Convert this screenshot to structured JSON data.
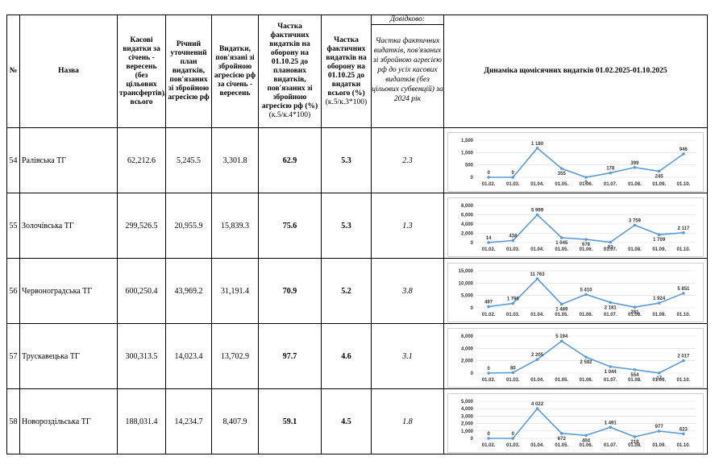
{
  "table": {
    "reference_note": "Довідково:",
    "headers": [
      {
        "text": "№"
      },
      {
        "text": "Назва"
      },
      {
        "text": "Касові видатки за січень - вересень (без цільових трансфертів), всього"
      },
      {
        "text": "Річний уточнений план видатків, пов'язаних зі збройною агресією рф"
      },
      {
        "text": "Видатки, пов'язані зі збройною агресією рф за січень - вересень"
      },
      {
        "text": "Частка фактичних видатків на оборону на 01.10.25 до планових видатків, пов'язаних зі збройною агресією рф (%)",
        "sub": "(к.5/к.4*100)"
      },
      {
        "text": "Частка фактичних видатків на оборону на 01.10.25 до видатки всього (%)",
        "sub": "(к.5/к.3*100)"
      },
      {
        "text": "Частка фактичних видатків, пов'язаних зі збройною агресією рф до усіх касових видатків (без цільових субвенцій) за 2024 рік"
      },
      {
        "text": "Динаміка щомісячних видатків 01.02.2025-01.10.2025"
      }
    ],
    "chart_categories": [
      "01.02.",
      "01.03.",
      "01.04.",
      "01.05.",
      "01.06.",
      "01.07.",
      "01.08.",
      "01.09.",
      "01.10."
    ],
    "rows": [
      {
        "cells": [
          "54",
          "Ралівська ТГ",
          "62,212.6",
          "5,245.5",
          "3,301.8",
          "62.9",
          "5.3",
          "2.3"
        ],
        "chart": {
          "values": [
            0,
            0,
            1180,
            355,
            0,
            178,
            399,
            245,
            946
          ],
          "value_labels": [
            "0",
            "0",
            "1 180",
            "355",
            "0",
            "178",
            "399",
            "245",
            "946"
          ],
          "ylim": [
            0,
            1500
          ],
          "yticks": [
            0,
            500,
            {
              "value": 1000,
              "label": "1,000"
            },
            {
              "value": 1500,
              "label": "1,500"
            }
          ]
        }
      },
      {
        "cells": [
          "55",
          "Золочівська ТГ",
          "299,526.5",
          "20,955.9",
          "15,839.3",
          "75.6",
          "5.3",
          "1.3"
        ],
        "chart": {
          "values": [
            14,
            438,
            5999,
            1045,
            678,
            82,
            3759,
            1709,
            2117
          ],
          "value_labels": [
            "14",
            "438",
            "5 999",
            "1 045",
            "678",
            "82",
            "3 759",
            "1 709",
            "2 117"
          ],
          "ylim": [
            0,
            8000
          ],
          "yticks": [
            0,
            {
              "value": 2000,
              "label": "2,000"
            },
            {
              "value": 4000,
              "label": "4,000"
            },
            {
              "value": 6000,
              "label": "6,000"
            },
            {
              "value": 8000,
              "label": "8,000"
            }
          ]
        }
      },
      {
        "cells": [
          "56",
          "Червоноградська ТГ",
          "600,250.4",
          "43,969.2",
          "31,191.4",
          "70.9",
          "5.2",
          "3.8"
        ],
        "chart": {
          "values": [
            497,
            1796,
            11763,
            1489,
            5410,
            2181,
            281,
            1924,
            5851
          ],
          "value_labels": [
            "497",
            "1 796",
            "11 763",
            "1 489",
            "5 410",
            "2 181",
            "281",
            "1 924",
            "5 851"
          ],
          "ylim": [
            0,
            15000
          ],
          "yticks": [
            0,
            {
              "value": 5000,
              "label": "5,000"
            },
            {
              "value": 10000,
              "label": "10,000"
            },
            {
              "value": 15000,
              "label": "15,000"
            }
          ]
        }
      },
      {
        "cells": [
          "57",
          "Трускавецька ТГ",
          "300,313.5",
          "14,023.4",
          "13,702.9",
          "97.7",
          "4.6",
          "3.1"
        ],
        "chart": {
          "values": [
            0,
            80,
            2205,
            5194,
            2592,
            1044,
            554,
            17,
            2017
          ],
          "value_labels": [
            "0",
            "80",
            "2 205",
            "5 194",
            "2 592",
            "1 044",
            "554",
            "17",
            "2 017"
          ],
          "ylim": [
            0,
            6000
          ],
          "yticks": [
            0,
            {
              "value": 2000,
              "label": "2,000"
            },
            {
              "value": 4000,
              "label": "4,000"
            },
            {
              "value": 6000,
              "label": "6,000"
            }
          ]
        }
      },
      {
        "cells": [
          "58",
          "Новороздільська ТГ",
          "188,031.4",
          "14,234.7",
          "8,407.9",
          "59.1",
          "4.5",
          "1.8"
        ],
        "chart": {
          "values": [
            0,
            0,
            4022,
            672,
            404,
            1491,
            219,
            977,
            623
          ],
          "value_labels": [
            "0",
            "0",
            "4 022",
            "672",
            "404",
            "1 491",
            "219",
            "977",
            "623"
          ],
          "ylim": [
            0,
            5000
          ],
          "yticks": [
            0,
            {
              "value": 1000,
              "label": "1,000"
            },
            {
              "value": 2000,
              "label": "2,000"
            },
            {
              "value": 3000,
              "label": "3,000"
            },
            {
              "value": 4000,
              "label": "4,000"
            },
            {
              "value": 5000,
              "label": "5,000"
            }
          ]
        }
      }
    ]
  }
}
